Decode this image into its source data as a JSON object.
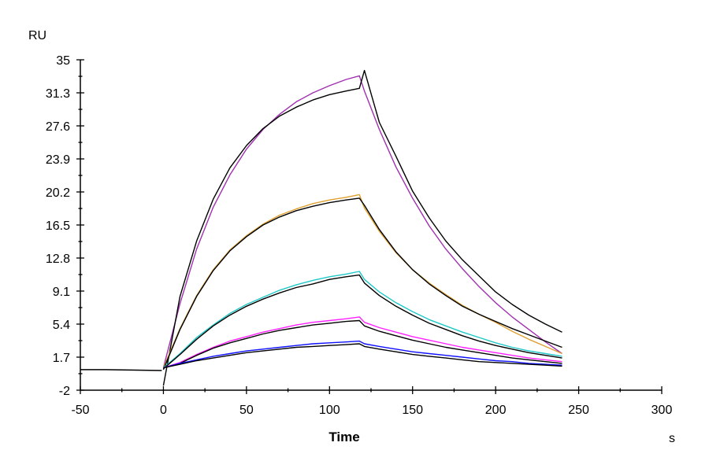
{
  "chart_data": {
    "type": "line",
    "title": "",
    "xlabel": "Time",
    "xunit": "s",
    "ylabel": "RU",
    "xlim": [
      -50,
      300
    ],
    "ylim": [
      -2,
      35
    ],
    "xticks": [
      "-50",
      "0",
      "50",
      "100",
      "150",
      "200",
      "250",
      "300"
    ],
    "yticks": [
      "-2",
      "1.7",
      "5.4",
      "9.1",
      "12.8",
      "16.5",
      "20.2",
      "23.9",
      "27.6",
      "31.3",
      "35"
    ],
    "grid": false,
    "legend": "none",
    "baseline": {
      "x": [
        -50,
        -35,
        -1
      ],
      "values": [
        0.3,
        0.3,
        0.2
      ],
      "color": "#000000"
    },
    "x": [
      0,
      10,
      20,
      30,
      40,
      50,
      60,
      70,
      80,
      90,
      100,
      110,
      118,
      121,
      130,
      140,
      150,
      160,
      170,
      180,
      190,
      200,
      210,
      220,
      230,
      240
    ],
    "series": [
      {
        "color": "#a030b0",
        "values": [
          0.5,
          7.7,
          13.8,
          18.5,
          22.1,
          25.0,
          27.2,
          28.9,
          30.3,
          31.3,
          32.1,
          32.8,
          33.2,
          31.5,
          27.2,
          23.0,
          19.5,
          16.4,
          13.8,
          11.6,
          9.6,
          7.8,
          6.2,
          4.8,
          3.4,
          2.1
        ]
      },
      {
        "color": "#000000",
        "values": [
          -1.5,
          8.5,
          14.7,
          19.4,
          22.9,
          25.4,
          27.3,
          28.7,
          29.7,
          30.5,
          31.1,
          31.5,
          31.8,
          33.8,
          28.0,
          24.2,
          20.3,
          17.3,
          14.7,
          12.6,
          10.8,
          9.0,
          7.6,
          6.4,
          5.4,
          4.5
        ]
      },
      {
        "color": "#e0a030",
        "values": [
          0.5,
          4.9,
          8.6,
          11.5,
          13.7,
          15.3,
          16.6,
          17.6,
          18.3,
          18.9,
          19.3,
          19.6,
          19.9,
          18.4,
          15.8,
          13.4,
          11.5,
          10.0,
          8.7,
          7.5,
          6.5,
          5.6,
          4.6,
          3.7,
          2.9,
          2.1
        ]
      },
      {
        "color": "#000000",
        "values": [
          0.3,
          4.8,
          8.5,
          11.4,
          13.6,
          15.2,
          16.5,
          17.4,
          18.1,
          18.6,
          19.0,
          19.3,
          19.5,
          18.7,
          16.0,
          13.5,
          11.5,
          9.9,
          8.6,
          7.4,
          6.5,
          5.7,
          4.9,
          4.2,
          3.5,
          2.8
        ]
      },
      {
        "color": "#20c8c8",
        "values": [
          0.5,
          2.1,
          3.9,
          5.3,
          6.6,
          7.6,
          8.4,
          9.2,
          9.8,
          10.3,
          10.7,
          11.0,
          11.3,
          10.4,
          9.0,
          7.8,
          6.8,
          5.9,
          5.2,
          4.5,
          3.9,
          3.3,
          2.8,
          2.4,
          2.1,
          1.8
        ]
      },
      {
        "color": "#000000",
        "values": [
          0.4,
          2.0,
          3.7,
          5.2,
          6.4,
          7.4,
          8.2,
          8.9,
          9.5,
          9.9,
          10.4,
          10.7,
          10.9,
          10.0,
          8.6,
          7.4,
          6.4,
          5.5,
          4.8,
          4.1,
          3.5,
          3.0,
          2.6,
          2.2,
          1.9,
          1.6
        ]
      },
      {
        "color": "#ff20ff",
        "values": [
          0.5,
          1.1,
          2.0,
          2.8,
          3.5,
          4.0,
          4.5,
          4.9,
          5.3,
          5.6,
          5.8,
          6.0,
          6.2,
          5.6,
          5.0,
          4.5,
          4.0,
          3.6,
          3.2,
          2.8,
          2.5,
          2.2,
          1.9,
          1.6,
          1.4,
          1.2
        ]
      },
      {
        "color": "#000000",
        "values": [
          0.5,
          1.0,
          1.9,
          2.7,
          3.3,
          3.8,
          4.3,
          4.7,
          5.0,
          5.3,
          5.5,
          5.7,
          5.8,
          5.2,
          4.6,
          4.1,
          3.6,
          3.2,
          2.8,
          2.5,
          2.2,
          1.9,
          1.6,
          1.4,
          1.2,
          1.0
        ]
      },
      {
        "color": "#1010ff",
        "values": [
          0.5,
          1.0,
          1.4,
          1.8,
          2.1,
          2.4,
          2.6,
          2.8,
          3.0,
          3.2,
          3.3,
          3.4,
          3.5,
          3.2,
          2.9,
          2.6,
          2.3,
          2.1,
          1.9,
          1.7,
          1.5,
          1.3,
          1.2,
          1.0,
          0.9,
          0.8
        ]
      },
      {
        "color": "#000000",
        "values": [
          0.5,
          0.9,
          1.3,
          1.6,
          1.9,
          2.2,
          2.4,
          2.6,
          2.8,
          2.9,
          3.0,
          3.1,
          3.2,
          2.9,
          2.6,
          2.3,
          2.0,
          1.8,
          1.6,
          1.4,
          1.2,
          1.1,
          1.0,
          0.9,
          0.8,
          0.7
        ]
      }
    ]
  }
}
